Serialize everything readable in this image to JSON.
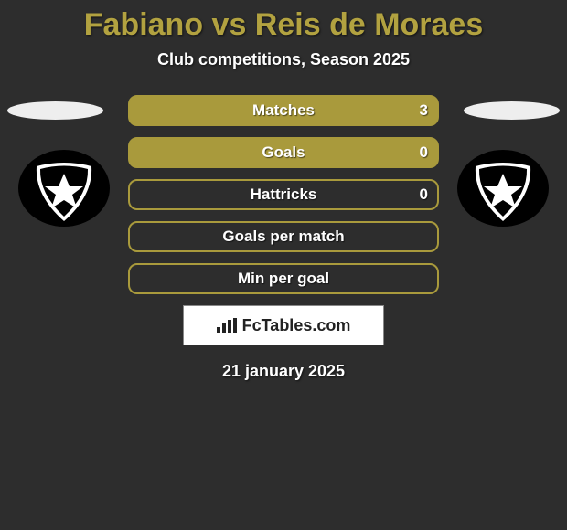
{
  "title": "Fabiano vs Reis de Moraes",
  "subtitle": "Club competitions, Season 2025",
  "date": "21 january 2025",
  "attribution": "FcTables.com",
  "colors": {
    "title": "#b2a240",
    "background": "#2d2d2d",
    "row_border": "#a99a3c",
    "row_fill": "#a99a3c",
    "row_text": "#ffffff",
    "attribution_text": "#222222"
  },
  "rows": [
    {
      "label": "Matches",
      "left": "",
      "right": "3",
      "fill_side": "right",
      "fill_pct": 100
    },
    {
      "label": "Goals",
      "left": "",
      "right": "0",
      "fill_side": "right",
      "fill_pct": 100
    },
    {
      "label": "Hattricks",
      "left": "",
      "right": "0",
      "fill_side": "none",
      "fill_pct": 0
    },
    {
      "label": "Goals per match",
      "left": "",
      "right": "",
      "fill_side": "none",
      "fill_pct": 0
    },
    {
      "label": "Min per goal",
      "left": "",
      "right": "",
      "fill_side": "none",
      "fill_pct": 0
    }
  ]
}
